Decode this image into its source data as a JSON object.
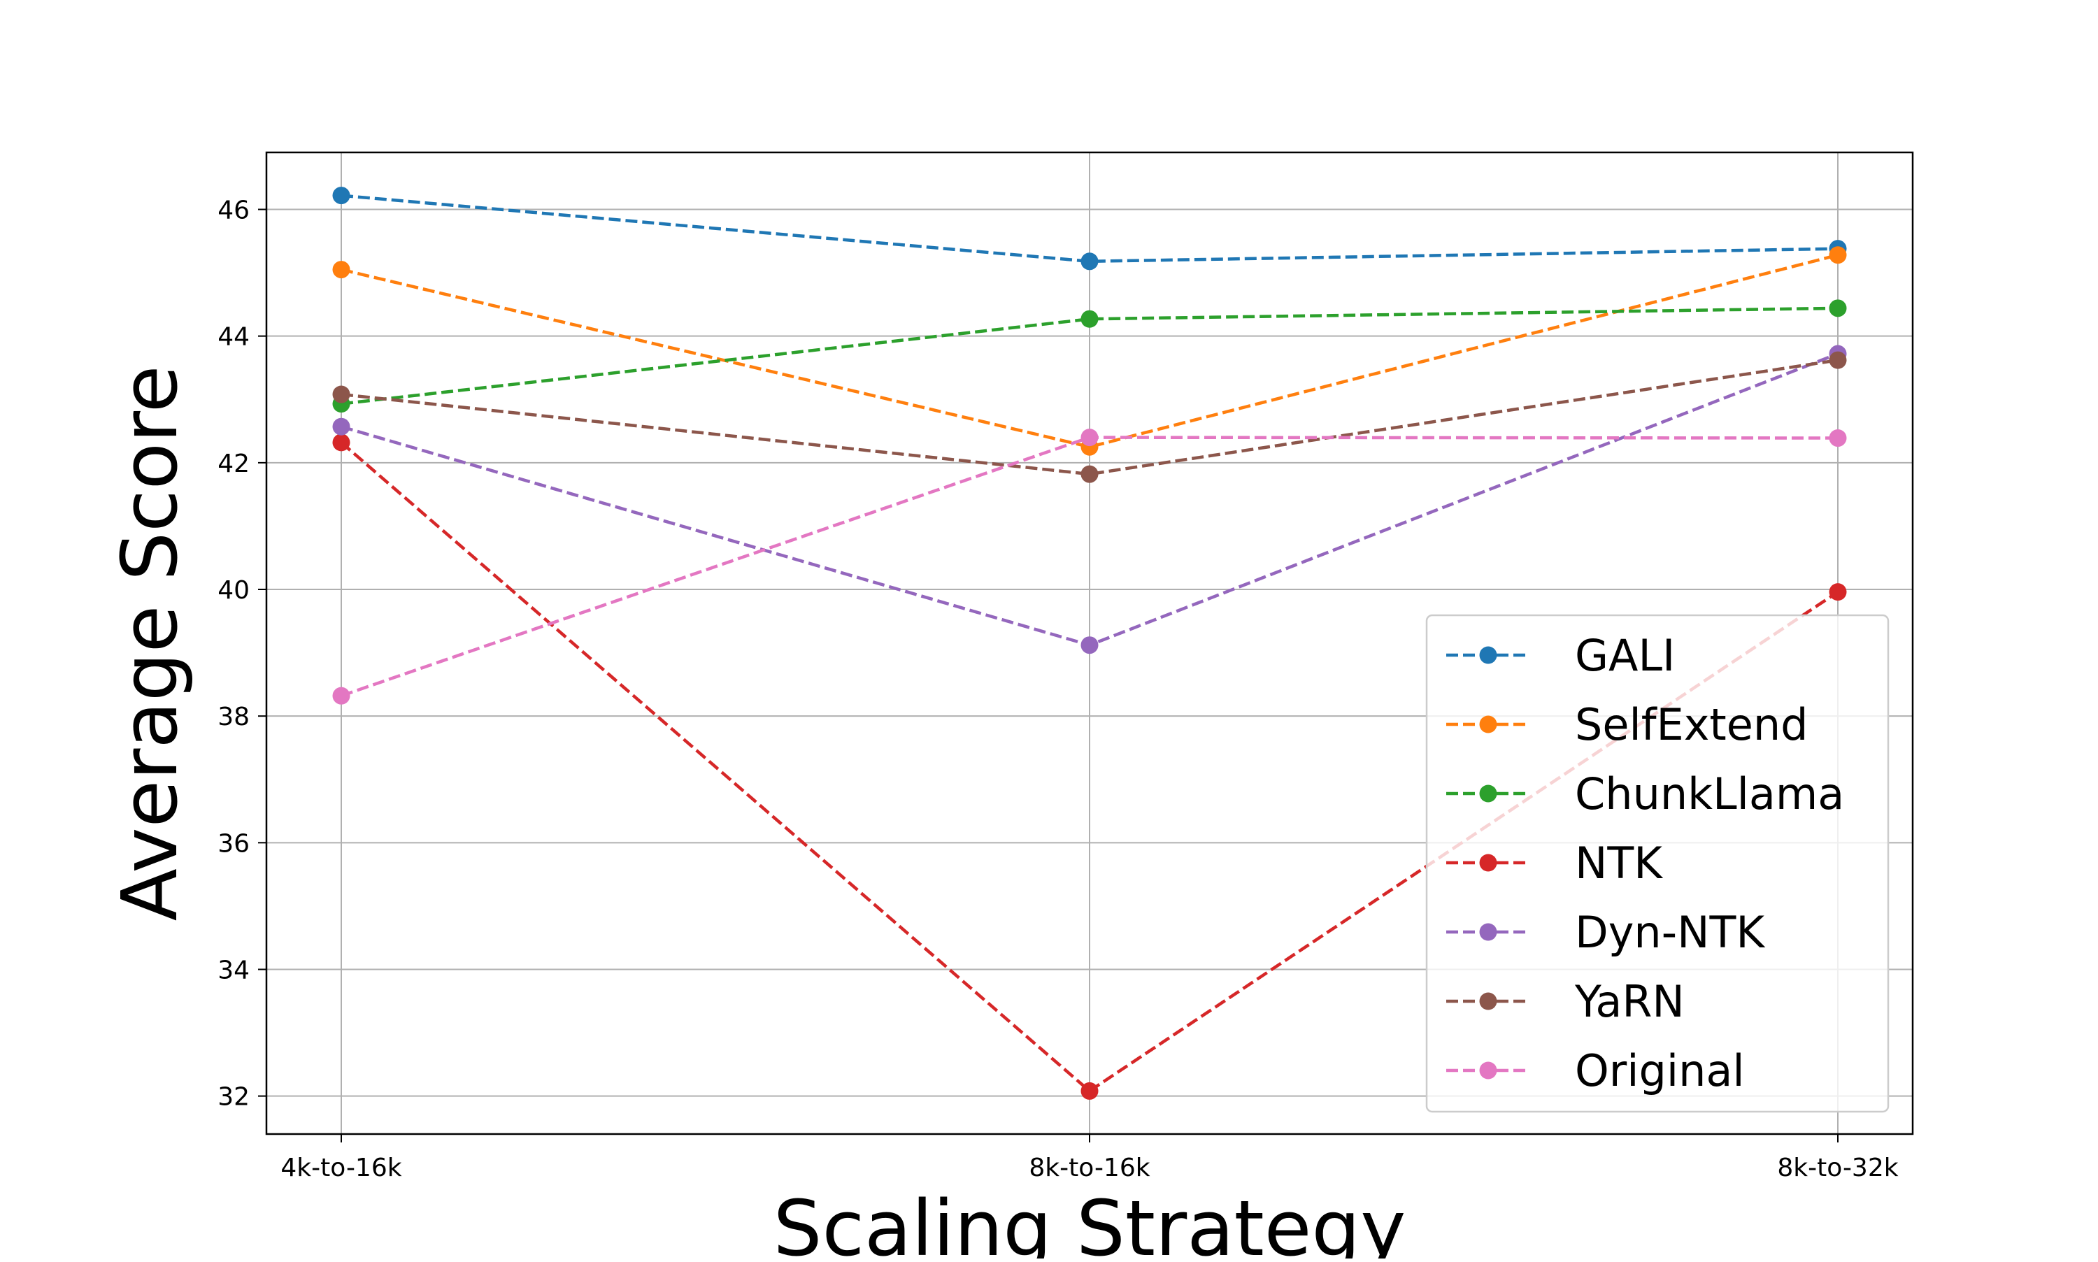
{
  "chart_data": {
    "type": "line",
    "title": "",
    "xlabel": "Scaling Strategy",
    "ylabel": "Average Score",
    "categories": [
      "4k-to-16k",
      "8k-to-16k",
      "8k-to-32k"
    ],
    "ylim": [
      31.4,
      46.9
    ],
    "yticks": [
      32,
      34,
      36,
      38,
      40,
      42,
      44,
      46
    ],
    "grid": true,
    "legend_position": "lower-right",
    "line_style": "dashed",
    "marker": "circle",
    "series": [
      {
        "name": "GALI",
        "color": "#1f77b4",
        "values": [
          46.22,
          45.18,
          45.38
        ]
      },
      {
        "name": "SelfExtend",
        "color": "#ff7f0e",
        "values": [
          45.05,
          42.25,
          45.28
        ]
      },
      {
        "name": "ChunkLlama",
        "color": "#2ca02c",
        "values": [
          42.93,
          44.27,
          44.44
        ]
      },
      {
        "name": "NTK",
        "color": "#d62728",
        "values": [
          42.32,
          32.08,
          39.96
        ]
      },
      {
        "name": "Dyn-NTK",
        "color": "#9467bd",
        "values": [
          42.57,
          39.12,
          43.72
        ]
      },
      {
        "name": "YaRN",
        "color": "#8c564b",
        "values": [
          43.08,
          41.82,
          43.62
        ]
      },
      {
        "name": "Original",
        "color": "#e377c2",
        "values": [
          38.32,
          42.4,
          42.39
        ]
      }
    ]
  }
}
